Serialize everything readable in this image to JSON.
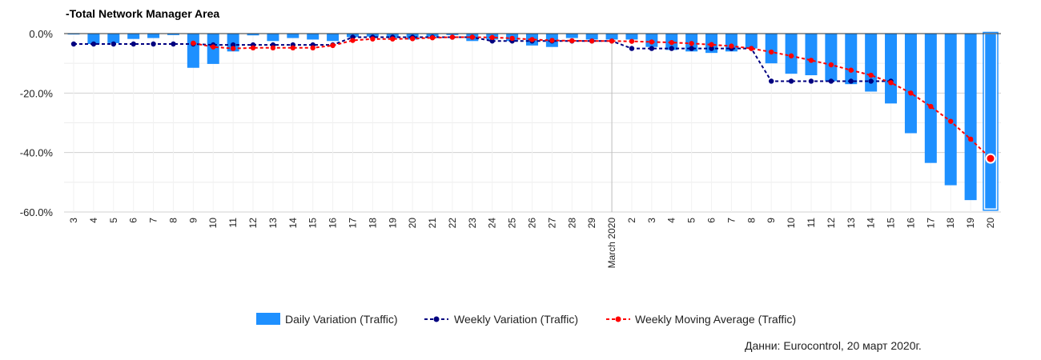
{
  "title": "-Total Network Manager Area",
  "source": "Данни: Eurocontrol, 20 март 2020г.",
  "colors": {
    "bar": "#1e90ff",
    "weekly": "#000080",
    "moving": "#ff0000",
    "grid": "#e0e0e0",
    "zero": "#333333"
  },
  "chart_data": {
    "type": "bar",
    "title": "-Total Network Manager Area",
    "xlabel": "",
    "ylabel": "",
    "ylim": [
      -60,
      0
    ],
    "yticks": [
      "0.0%",
      "-20.0%",
      "-40.0%",
      "-60.0%"
    ],
    "ytick_values": [
      0,
      -20,
      -40,
      -60
    ],
    "grid": true,
    "legend_position": "bottom",
    "categories": [
      "3",
      "4",
      "5",
      "6",
      "7",
      "8",
      "9",
      "10",
      "11",
      "12",
      "13",
      "14",
      "15",
      "16",
      "17",
      "18",
      "19",
      "20",
      "21",
      "22",
      "23",
      "24",
      "25",
      "26",
      "27",
      "28",
      "29",
      "March 2020",
      "2",
      "3",
      "4",
      "5",
      "6",
      "7",
      "8",
      "9",
      "10",
      "11",
      "12",
      "13",
      "14",
      "15",
      "16",
      "17",
      "18",
      "19",
      "20"
    ],
    "series": [
      {
        "name": "Daily Variation (Traffic)",
        "kind": "bar",
        "values": [
          -0.3,
          -3.5,
          -3.2,
          -1.8,
          -1.5,
          -0.5,
          -11.5,
          -10.2,
          -6.0,
          -0.6,
          -2.5,
          -1.5,
          -2.0,
          -2.5,
          -1.2,
          -1.0,
          -1.5,
          -2.0,
          -1.0,
          -0.5,
          -2.5,
          -2.0,
          -2.5,
          -4.0,
          -4.5,
          -1.5,
          -2.0,
          -2.0,
          -2.0,
          -4.5,
          -5.5,
          -6.0,
          -6.5,
          -6.0,
          -5.0,
          -10.0,
          -13.5,
          -14.0,
          -16.0,
          -17.0,
          -19.5,
          -23.5,
          -33.5,
          -43.5,
          -51.0,
          -56.0,
          -59.0
        ]
      },
      {
        "name": "Weekly Variation (Traffic)",
        "kind": "line",
        "values": [
          -3.5,
          -3.5,
          -3.5,
          -3.5,
          -3.5,
          -3.5,
          -3.5,
          -3.8,
          -3.8,
          -3.8,
          -3.8,
          -3.8,
          -3.8,
          -3.8,
          -1.2,
          -1.2,
          -1.2,
          -1.2,
          -1.2,
          -1.2,
          -1.2,
          -2.5,
          -2.5,
          -2.5,
          -2.5,
          -2.5,
          -2.5,
          -2.5,
          -5.0,
          -5.0,
          -5.0,
          -5.0,
          -5.0,
          -5.0,
          -5.0,
          -16.0,
          -16.0,
          -16.0,
          -16.0,
          -16.0,
          -16.0,
          -16.0,
          null,
          null,
          null,
          null,
          null
        ]
      },
      {
        "name": "Weekly Moving Average (Traffic)",
        "kind": "line",
        "values": [
          null,
          null,
          null,
          null,
          null,
          null,
          -3.2,
          -4.5,
          -5.0,
          -4.8,
          -4.8,
          -4.8,
          -4.8,
          -4.0,
          -2.3,
          -1.8,
          -1.8,
          -1.7,
          -1.4,
          -1.2,
          -1.2,
          -1.3,
          -1.6,
          -2.0,
          -2.3,
          -2.4,
          -2.5,
          -2.5,
          -2.6,
          -2.8,
          -3.0,
          -3.3,
          -3.7,
          -4.2,
          -5.0,
          -6.2,
          -7.5,
          -9.0,
          -10.5,
          -12.3,
          -14.0,
          -16.5,
          -20.0,
          -24.5,
          -29.5,
          -35.5,
          -42.0
        ]
      }
    ],
    "highlighted_index": 46
  }
}
